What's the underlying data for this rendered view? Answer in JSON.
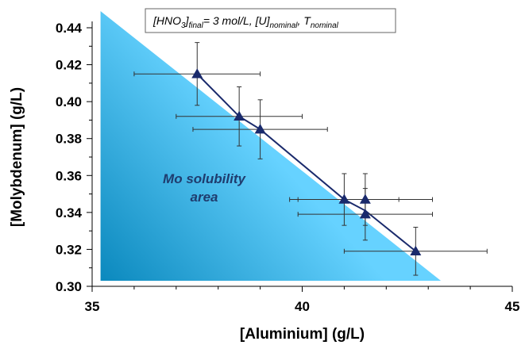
{
  "chart_data": {
    "type": "scatter",
    "title": "",
    "xlabel": "[Aluminium] (g/L)",
    "ylabel": "[Molybdenum] (g/L)",
    "xlim": [
      35,
      45
    ],
    "ylim": [
      0.3,
      0.44
    ],
    "x_ticks": [
      "35",
      "40",
      "45"
    ],
    "y_ticks": [
      "0.30",
      "0.32",
      "0.34",
      "0.36",
      "0.38",
      "0.40",
      "0.42",
      "0.44"
    ],
    "grid": false,
    "legend": {
      "placement": "top-center",
      "parts": [
        {
          "text": "[HNO",
          "sub": false
        },
        {
          "text": "3",
          "sub": true
        },
        {
          "text": "]",
          "sub": false
        },
        {
          "text": "final",
          "sub": true
        },
        {
          "text": "= 3 mol/L, [U]",
          "sub": false
        },
        {
          "text": "nominal",
          "sub": true
        },
        {
          "text": ", T",
          "sub": false
        },
        {
          "text": "nominal",
          "sub": true
        }
      ]
    },
    "region": {
      "label_lines": [
        "Mo solubility",
        "area"
      ],
      "vertices": [
        [
          35.2,
          0.449
        ],
        [
          35.2,
          0.303
        ],
        [
          43.3,
          0.303
        ]
      ],
      "color_light": "#66d2ff",
      "color_dark": "#0a88bd"
    },
    "series": [
      {
        "marker": "triangle",
        "color": "#1a2a6c",
        "points": [
          {
            "x": 37.5,
            "y": 0.415,
            "xerr": 1.5,
            "yerr": 0.017
          },
          {
            "x": 38.5,
            "y": 0.392,
            "xerr": 1.5,
            "yerr": 0.016
          },
          {
            "x": 39.0,
            "y": 0.385,
            "xerr": 1.6,
            "yerr": 0.016
          },
          {
            "x": 41.0,
            "y": 0.347,
            "xerr": 1.3,
            "yerr": 0.014
          },
          {
            "x": 41.5,
            "y": 0.347,
            "xerr": 1.6,
            "yerr": 0.014
          },
          {
            "x": 41.5,
            "y": 0.339,
            "xerr": 1.6,
            "yerr": 0.014
          },
          {
            "x": 42.7,
            "y": 0.319,
            "xerr": 1.7,
            "yerr": 0.013
          }
        ]
      }
    ],
    "trend_line": {
      "color": "#1a2a6c",
      "points": [
        [
          37.5,
          0.415
        ],
        [
          38.5,
          0.392
        ],
        [
          39.0,
          0.385
        ],
        [
          41.0,
          0.347
        ],
        [
          41.5,
          0.341
        ],
        [
          42.7,
          0.319
        ]
      ]
    }
  }
}
